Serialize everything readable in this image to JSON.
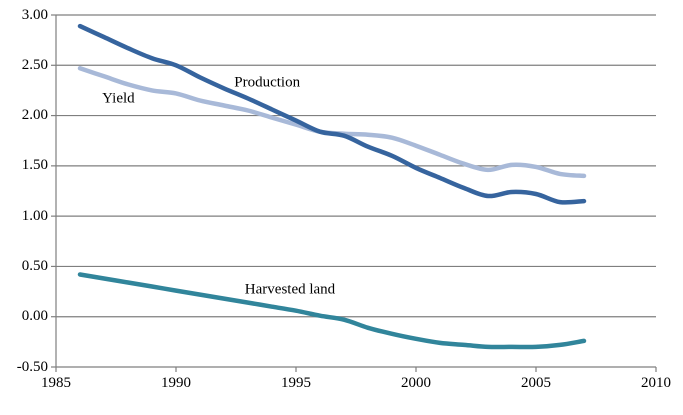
{
  "chart_data": {
    "type": "line",
    "title": "",
    "xlabel": "",
    "ylabel": "",
    "grid": "horizontal",
    "legend": "inline-labels",
    "axis_color": "#7f7f7f",
    "background_color": "#ffffff",
    "xlim": [
      1985,
      2010
    ],
    "ylim": [
      -0.5,
      3.0
    ],
    "x_ticks": [
      1985,
      1990,
      1995,
      2000,
      2005,
      2010
    ],
    "x_tick_labels": [
      "1985",
      "1990",
      "1995",
      "2000",
      "2005",
      "2010"
    ],
    "y_ticks": [
      3.0,
      2.5,
      2.0,
      1.5,
      1.0,
      0.5,
      0.0,
      -0.5
    ],
    "y_tick_labels": [
      "3.00",
      "2.50",
      "2.00",
      "1.50",
      "1.00",
      "0.50",
      "0.00",
      "-0.50"
    ],
    "x": [
      1986,
      1987,
      1988,
      1989,
      1990,
      1991,
      1992,
      1993,
      1994,
      1995,
      1996,
      1997,
      1998,
      1999,
      2000,
      2001,
      2002,
      2003,
      2004,
      2005,
      2006,
      2007
    ],
    "series": [
      {
        "name": "Production",
        "color": "#36649E",
        "values": [
          2.89,
          2.78,
          2.67,
          2.57,
          2.5,
          2.38,
          2.27,
          2.17,
          2.06,
          1.95,
          1.84,
          1.8,
          1.69,
          1.6,
          1.48,
          1.38,
          1.28,
          1.2,
          1.24,
          1.22,
          1.14,
          1.15
        ]
      },
      {
        "name": "Yield",
        "color": "#A8B9D8",
        "values": [
          2.47,
          2.39,
          2.31,
          2.25,
          2.22,
          2.15,
          2.1,
          2.05,
          1.98,
          1.91,
          1.84,
          1.82,
          1.81,
          1.78,
          1.7,
          1.61,
          1.52,
          1.46,
          1.51,
          1.49,
          1.42,
          1.4
        ]
      },
      {
        "name": "Harvested land",
        "color": "#31859B",
        "values": [
          0.42,
          0.38,
          0.34,
          0.3,
          0.26,
          0.22,
          0.18,
          0.14,
          0.1,
          0.06,
          0.01,
          -0.03,
          -0.11,
          -0.17,
          -0.22,
          -0.26,
          -0.28,
          -0.3,
          -0.3,
          -0.3,
          -0.28,
          -0.24
        ]
      }
    ],
    "annotations": [
      {
        "text": "Production",
        "x": 1993.8,
        "y": 2.32
      },
      {
        "text": "Yield",
        "x": 1987.6,
        "y": 2.16
      },
      {
        "text": "Harvested land",
        "x": 1994.75,
        "y": 0.27
      }
    ]
  }
}
